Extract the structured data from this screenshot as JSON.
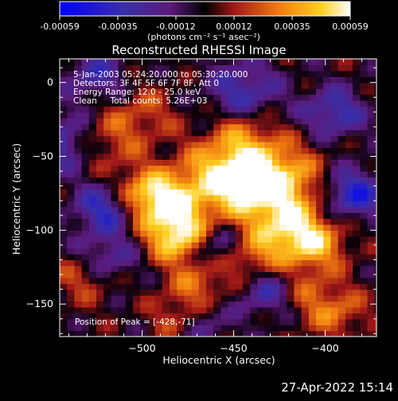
{
  "chart_data": {
    "type": "heatmap",
    "title": "Reconstructed RHESSI Image",
    "xlabel": "Heliocentric X (arcsec)",
    "ylabel": "Heliocentric Y (arcsec)",
    "xlim": [
      -545,
      -372
    ],
    "ylim": [
      -172,
      16
    ],
    "x_ticks": [
      -500,
      -450,
      -400
    ],
    "y_ticks": [
      0,
      -50,
      -100,
      -150
    ],
    "colorbar": {
      "min": -0.00059,
      "max": 0.00059,
      "ticks": [
        "-0.00059",
        "-0.00035",
        "-0.00012",
        "0.00012",
        "0.00035",
        "0.00059"
      ],
      "unit_label": "(photons cm⁻² s⁻¹ asec⁻²)"
    },
    "annotations": [
      "5-Jan-2003 05:24:20.000 to 05:30:20.000",
      "Detectors: 3F 4F 5F 6F 7F 8F, Att 0",
      "Energy Range: 12.0 - 25.0 keV",
      "Clean     Total counts: 5.26E+03"
    ],
    "peak_label": "Position of Peak = [-428,-71]",
    "peak": {
      "x": -428,
      "y": -71
    }
  },
  "footer": {
    "date": "27-Apr-2022 15:14"
  }
}
